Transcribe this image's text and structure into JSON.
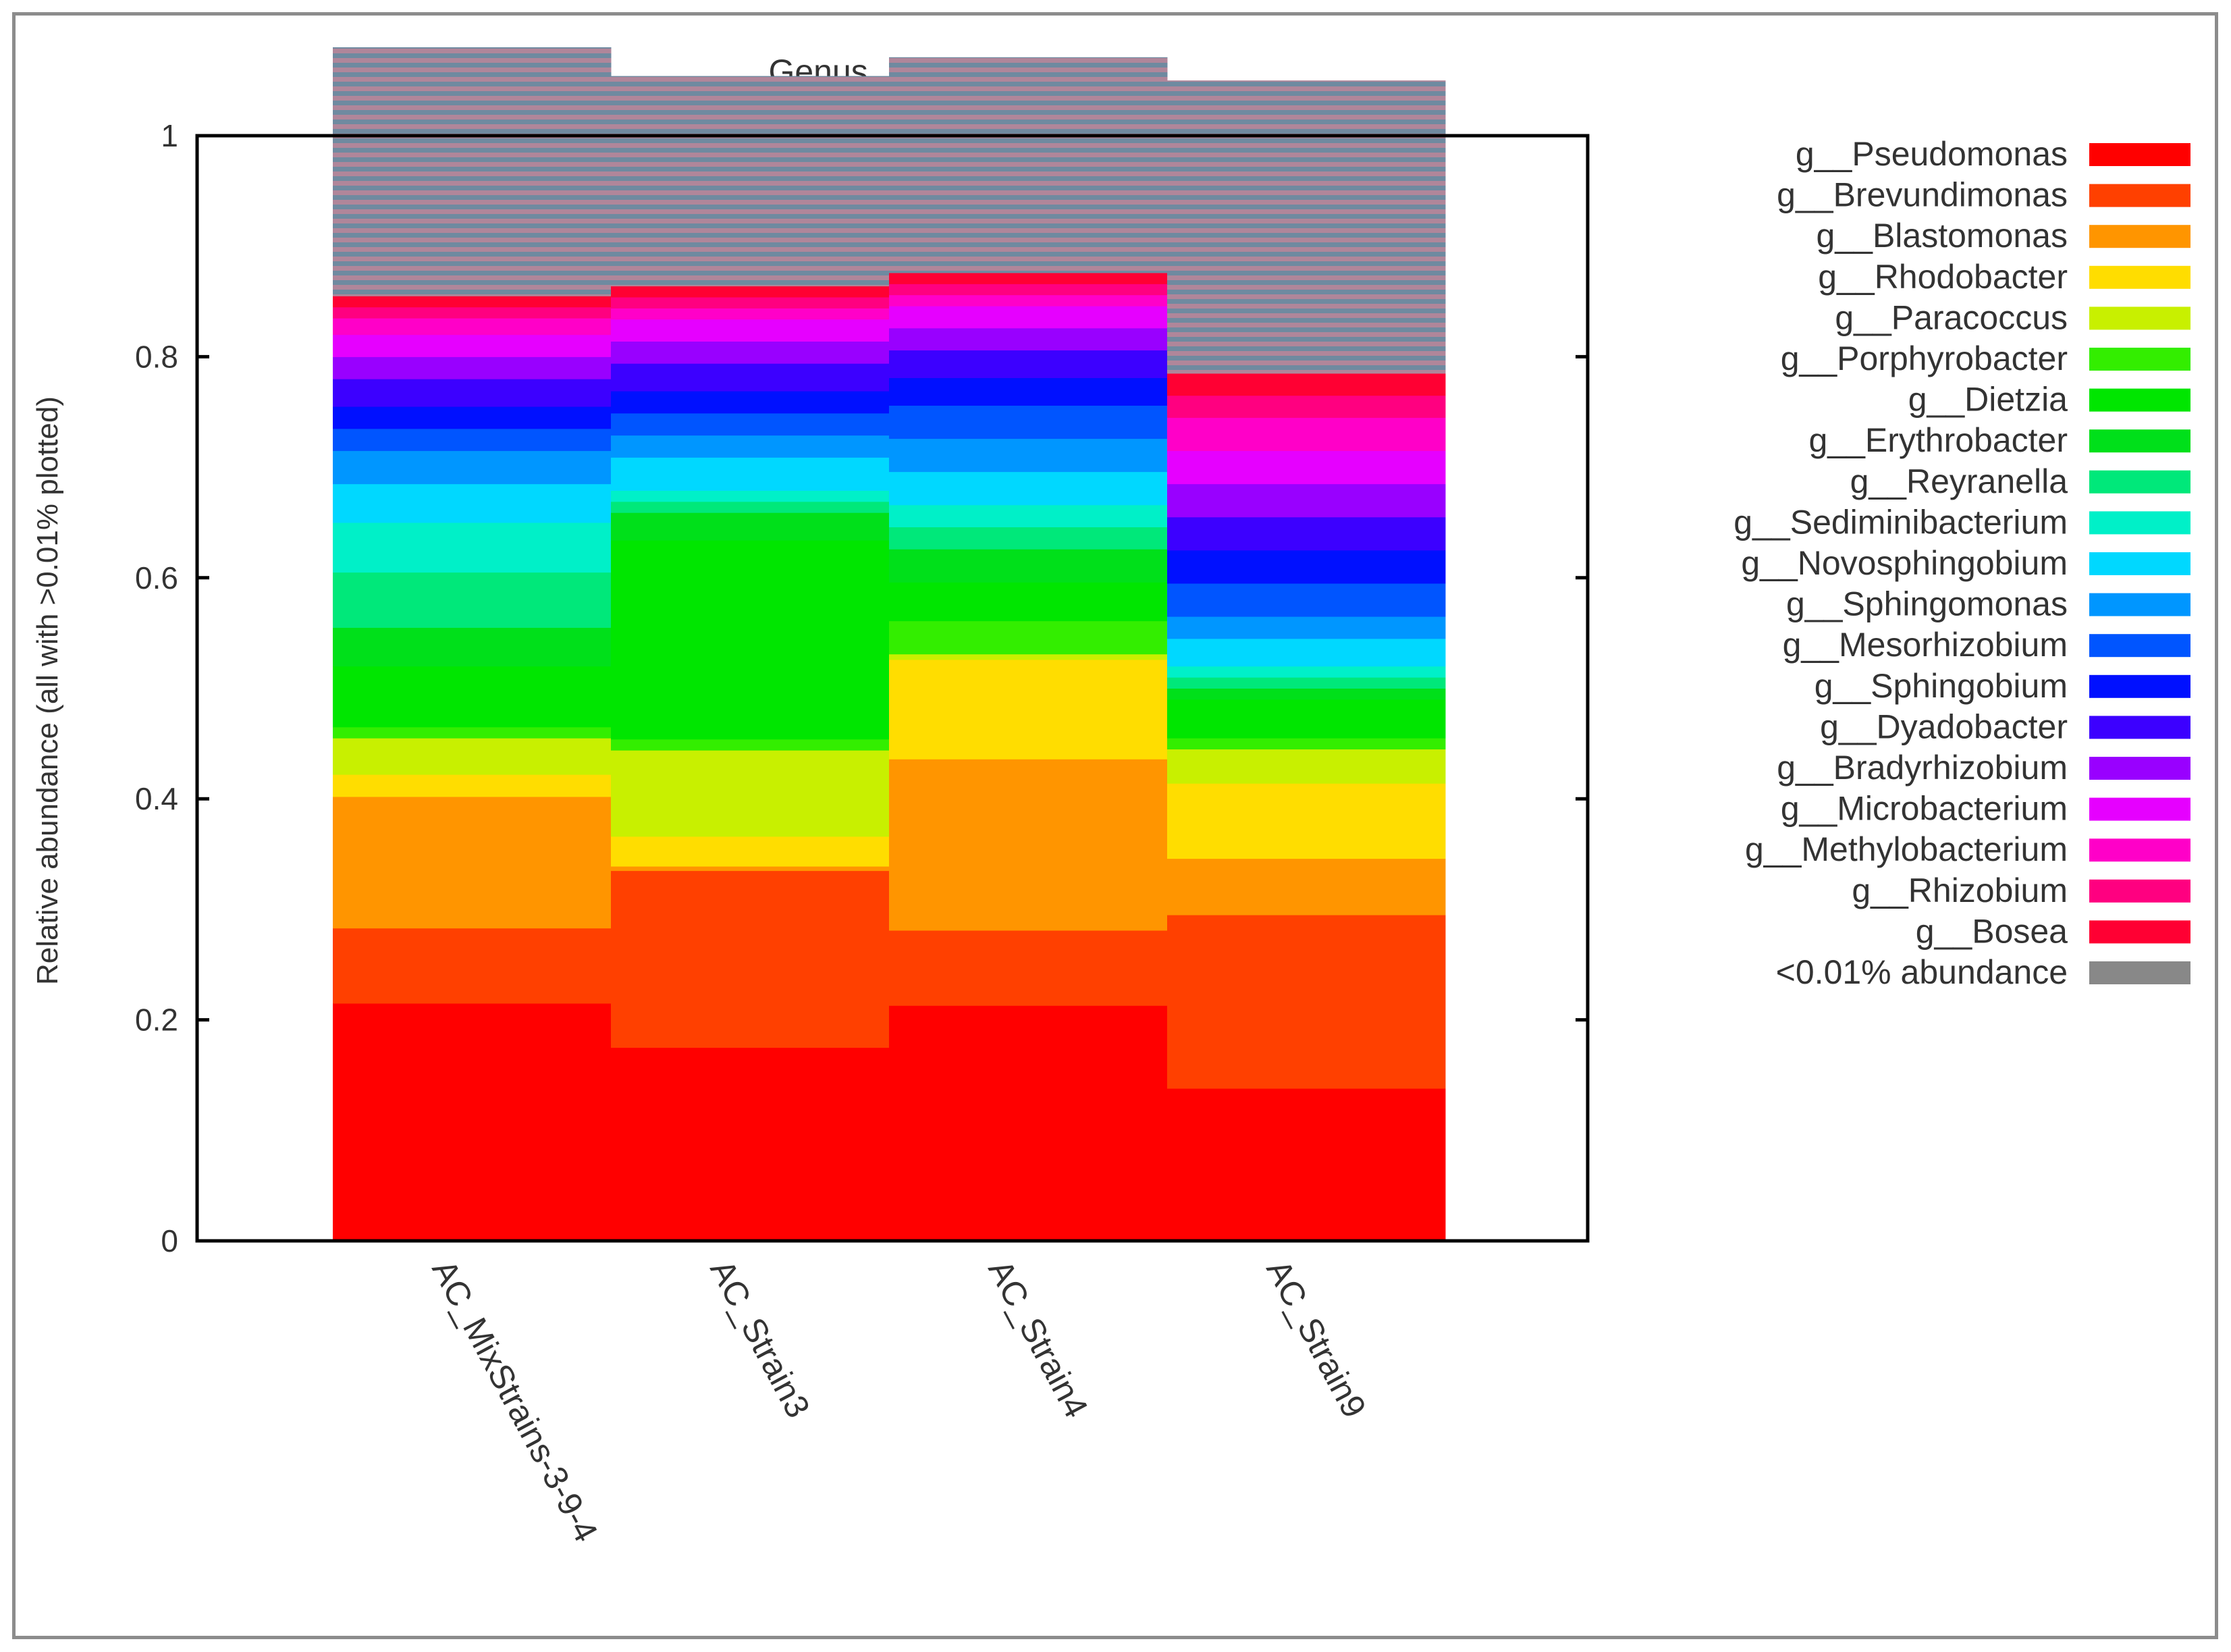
{
  "chart_data": {
    "type": "bar",
    "stacked": true,
    "title": "Genus_bacteria",
    "xlabel": "",
    "ylabel": "Relative abundance (all with >0.01% plotted)",
    "ylim": [
      0,
      1
    ],
    "yticks": [
      "0",
      "0.2",
      "0.4",
      "0.6",
      "0.8",
      "1"
    ],
    "categories": [
      "AC_MixStrains-3-9-4",
      "AC_Strain3",
      "AC_Strain4",
      "AC_Strain9"
    ],
    "legend_position": "right",
    "series": [
      {
        "name": "g__Pseudomonas",
        "color": "#ff0000",
        "values": [
          0.215,
          0.175,
          0.213,
          0.138
        ]
      },
      {
        "name": "g__Brevundimonas",
        "color": "#ff4000",
        "values": [
          0.068,
          0.16,
          0.068,
          0.157
        ]
      },
      {
        "name": "g__Blastomonas",
        "color": "#ff9500",
        "values": [
          0.119,
          0.004,
          0.155,
          0.051
        ]
      },
      {
        "name": "g__Rhodobacter",
        "color": "#ffdd00",
        "values": [
          0.02,
          0.027,
          0.09,
          0.068
        ]
      },
      {
        "name": "g__Paracoccus",
        "color": "#c8f000",
        "values": [
          0.033,
          0.078,
          0.005,
          0.031
        ]
      },
      {
        "name": "g__Porphyrobacter",
        "color": "#33ee00",
        "values": [
          0.01,
          0.01,
          0.03,
          0.01
        ]
      },
      {
        "name": "g__Dietzia",
        "color": "#00e600",
        "values": [
          0.055,
          0.18,
          0.035,
          0.035
        ]
      },
      {
        "name": "g__Erythrobacter",
        "color": "#00e01a",
        "values": [
          0.035,
          0.025,
          0.03,
          0.01
        ]
      },
      {
        "name": "g__Reyranella",
        "color": "#00e87a",
        "values": [
          0.05,
          0.01,
          0.02,
          0.01
        ]
      },
      {
        "name": "g__Sediminibacterium",
        "color": "#00f0c8",
        "values": [
          0.045,
          0.01,
          0.02,
          0.01
        ]
      },
      {
        "name": "g__Novosphingobium",
        "color": "#00d8ff",
        "values": [
          0.035,
          0.03,
          0.03,
          0.025
        ]
      },
      {
        "name": "g__Sphingomonas",
        "color": "#0096ff",
        "values": [
          0.03,
          0.02,
          0.03,
          0.02
        ]
      },
      {
        "name": "g__Mesorhizobium",
        "color": "#0055ff",
        "values": [
          0.02,
          0.02,
          0.03,
          0.03
        ]
      },
      {
        "name": "g__Sphingobium",
        "color": "#0010ff",
        "values": [
          0.02,
          0.02,
          0.025,
          0.03
        ]
      },
      {
        "name": "g__Dyadobacter",
        "color": "#3c00ff",
        "values": [
          0.025,
          0.025,
          0.025,
          0.03
        ]
      },
      {
        "name": "g__Bradyrhizobium",
        "color": "#9900ff",
        "values": [
          0.02,
          0.02,
          0.02,
          0.03
        ]
      },
      {
        "name": "g__Microbacterium",
        "color": "#e600ff",
        "values": [
          0.02,
          0.02,
          0.02,
          0.03
        ]
      },
      {
        "name": "g__Methylobacterium",
        "color": "#ff00c8",
        "values": [
          0.015,
          0.01,
          0.01,
          0.03
        ]
      },
      {
        "name": "g__Rhizobium",
        "color": "#ff0080",
        "values": [
          0.01,
          0.01,
          0.01,
          0.02
        ]
      },
      {
        "name": "g__Bosea",
        "color": "#ff0033",
        "values": [
          0.01,
          0.01,
          0.01,
          0.02
        ]
      },
      {
        "name": "<0.01% abundance",
        "color": "#888888",
        "values": [
          0.225,
          0.19,
          0.195,
          0.265
        ]
      }
    ]
  }
}
